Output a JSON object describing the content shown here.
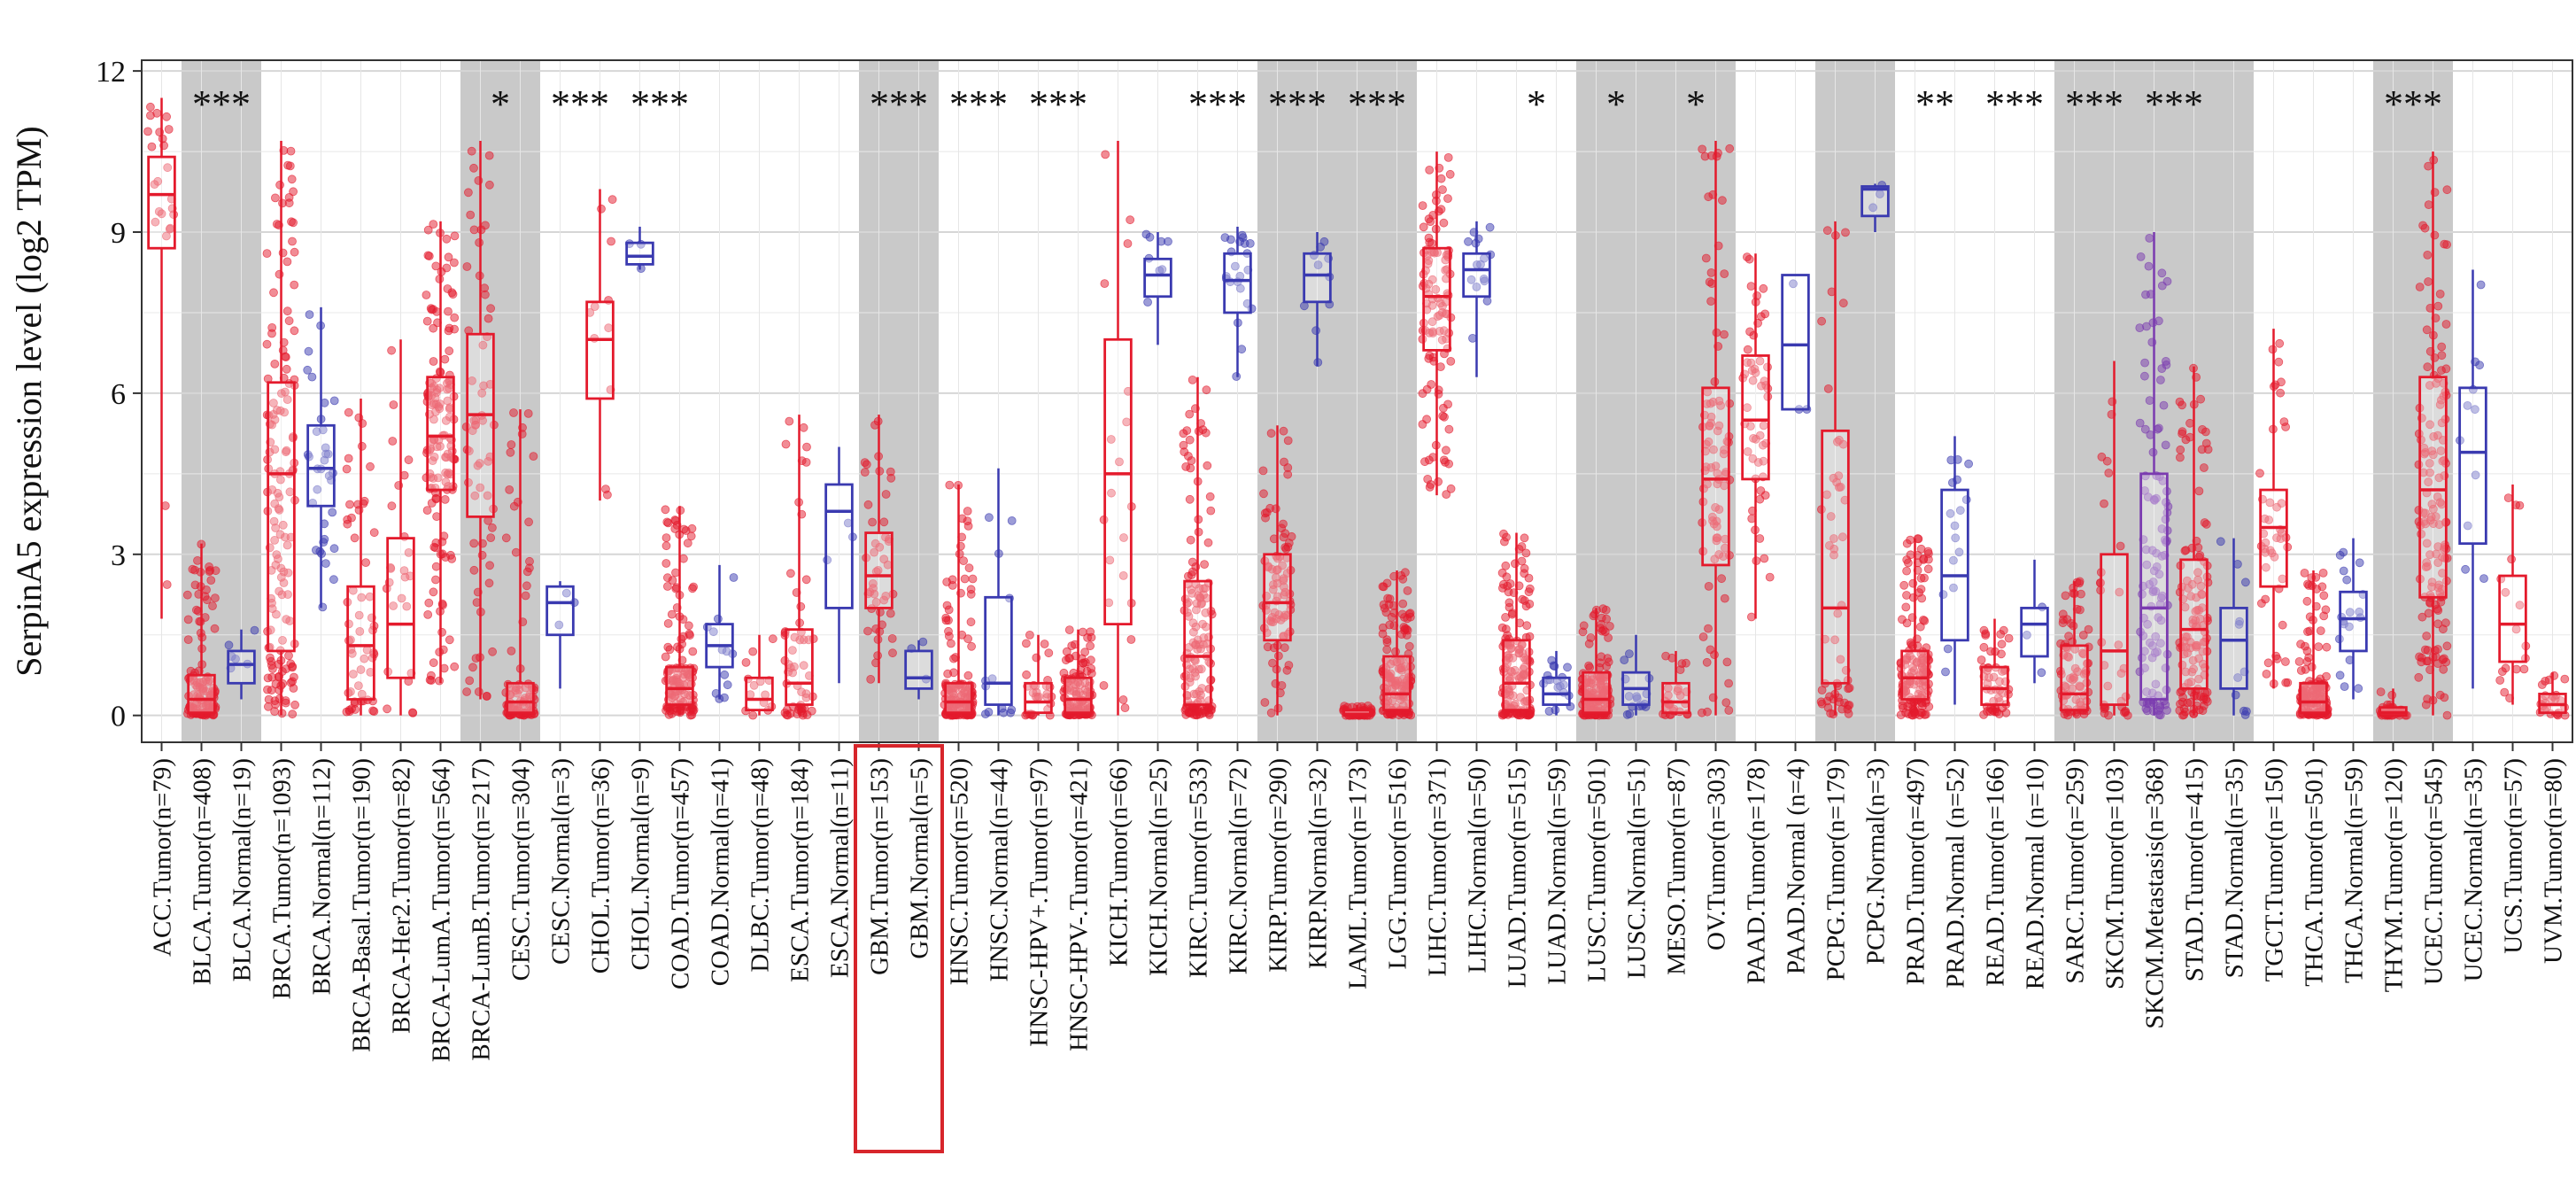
{
  "chart_data": {
    "type": "box",
    "ylabel": "SerpinA5 expression level (log2 TPM)",
    "ylim": [
      -0.5,
      12.2
    ],
    "yticks": [
      0,
      3,
      6,
      9,
      12
    ],
    "colors": {
      "tumor": "#e41a2c",
      "normal": "#3a3ab0",
      "metastasis": "#7b3bb0",
      "band": "#c9c9c9"
    },
    "highlight_indices": [
      18,
      19
    ],
    "significance": [
      {
        "label": "***",
        "indices": [
          1,
          2
        ]
      },
      {
        "label": "*",
        "indices": [
          8,
          9
        ]
      },
      {
        "label": "***",
        "indices": [
          10,
          11
        ]
      },
      {
        "label": "***",
        "indices": [
          12,
          13
        ]
      },
      {
        "label": "***",
        "indices": [
          18,
          19
        ]
      },
      {
        "label": "***",
        "indices": [
          20,
          21
        ]
      },
      {
        "label": "***",
        "indices": [
          22,
          23
        ]
      },
      {
        "label": "***",
        "indices": [
          26,
          27
        ]
      },
      {
        "label": "***",
        "indices": [
          28,
          29
        ]
      },
      {
        "label": "***",
        "indices": [
          30,
          31
        ]
      },
      {
        "label": "*",
        "indices": [
          34,
          35
        ]
      },
      {
        "label": "*",
        "indices": [
          36,
          37
        ]
      },
      {
        "label": "*",
        "indices": [
          38,
          39
        ]
      },
      {
        "label": "**",
        "indices": [
          44,
          45
        ]
      },
      {
        "label": "***",
        "indices": [
          46,
          47
        ]
      },
      {
        "label": "***",
        "indices": [
          48,
          49
        ]
      },
      {
        "label": "***",
        "indices": [
          50,
          51
        ]
      },
      {
        "label": "***",
        "indices": [
          56,
          57
        ]
      }
    ],
    "bands": [
      {
        "start": 1,
        "end": 2,
        "shade": true
      },
      {
        "start": 3,
        "end": 4,
        "shade": false
      },
      {
        "start": 5,
        "end": 7,
        "shade": false
      },
      {
        "start": 8,
        "end": 9,
        "shade": true
      },
      {
        "start": 10,
        "end": 11,
        "shade": false
      },
      {
        "start": 12,
        "end": 13,
        "shade": false
      },
      {
        "start": 14,
        "end": 14,
        "shade": false
      },
      {
        "start": 15,
        "end": 16,
        "shade": false
      },
      {
        "start": 18,
        "end": 19,
        "shade": true
      },
      {
        "start": 20,
        "end": 21,
        "shade": false
      },
      {
        "start": 22,
        "end": 23,
        "shade": false
      },
      {
        "start": 24,
        "end": 25,
        "shade": false
      },
      {
        "start": 26,
        "end": 27,
        "shade": false
      },
      {
        "start": 28,
        "end": 29,
        "shade": true
      },
      {
        "start": 30,
        "end": 31,
        "shade": true
      },
      {
        "start": 34,
        "end": 35,
        "shade": false
      },
      {
        "start": 36,
        "end": 37,
        "shade": true
      },
      {
        "start": 38,
        "end": 39,
        "shade": true
      },
      {
        "start": 42,
        "end": 43,
        "shade": true
      },
      {
        "start": 44,
        "end": 45,
        "shade": false
      },
      {
        "start": 46,
        "end": 47,
        "shade": false
      },
      {
        "start": 48,
        "end": 49,
        "shade": true
      },
      {
        "start": 50,
        "end": 52,
        "shade": true
      },
      {
        "start": 53,
        "end": 54,
        "shade": false
      },
      {
        "start": 56,
        "end": 57,
        "shade": true
      },
      {
        "start": 59,
        "end": 60,
        "shade": false
      }
    ],
    "categories": [
      {
        "label": "ACC.Tumor(n=79)",
        "type": "tumor",
        "q1": 8.7,
        "median": 9.7,
        "q3": 10.4,
        "wlo": 1.8,
        "whi": 11.5
      },
      {
        "label": "BLCA.Tumor(n=408)",
        "type": "tumor",
        "q1": 0.05,
        "median": 0.3,
        "q3": 0.75,
        "wlo": 0.0,
        "whi": 3.2
      },
      {
        "label": "BLCA.Normal(n=19)",
        "type": "normal",
        "q1": 0.6,
        "median": 0.95,
        "q3": 1.2,
        "wlo": 0.3,
        "whi": 1.6
      },
      {
        "label": "BRCA.Tumor(n=1093)",
        "type": "tumor",
        "q1": 1.2,
        "median": 4.5,
        "q3": 6.2,
        "wlo": 0.0,
        "whi": 10.7
      },
      {
        "label": "BRCA.Normal(n=112)",
        "type": "normal",
        "q1": 3.9,
        "median": 4.6,
        "q3": 5.4,
        "wlo": 2.0,
        "whi": 7.6
      },
      {
        "label": "BRCA-Basal.Tumor(n=190)",
        "type": "tumor",
        "q1": 0.3,
        "median": 1.3,
        "q3": 2.4,
        "wlo": 0.0,
        "whi": 5.9
      },
      {
        "label": "BRCA-Her2.Tumor(n=82)",
        "type": "tumor",
        "q1": 0.7,
        "median": 1.7,
        "q3": 3.3,
        "wlo": 0.0,
        "whi": 7.0
      },
      {
        "label": "BRCA-LumA.Tumor(n=564)",
        "type": "tumor",
        "q1": 4.2,
        "median": 5.2,
        "q3": 6.3,
        "wlo": 0.6,
        "whi": 9.2
      },
      {
        "label": "BRCA-LumB.Tumor(n=217)",
        "type": "tumor",
        "q1": 3.7,
        "median": 5.6,
        "q3": 7.1,
        "wlo": 0.3,
        "whi": 10.7
      },
      {
        "label": "CESC.Tumor(n=304)",
        "type": "tumor",
        "q1": 0.05,
        "median": 0.25,
        "q3": 0.6,
        "wlo": 0.0,
        "whi": 5.7
      },
      {
        "label": "CESC.Normal(n=3)",
        "type": "normal",
        "q1": 1.5,
        "median": 2.1,
        "q3": 2.4,
        "wlo": 0.5,
        "whi": 2.5
      },
      {
        "label": "CHOL.Tumor(n=36)",
        "type": "tumor",
        "q1": 5.9,
        "median": 7.0,
        "q3": 7.7,
        "wlo": 4.0,
        "whi": 9.8
      },
      {
        "label": "CHOL.Normal(n=9)",
        "type": "normal",
        "q1": 8.4,
        "median": 8.55,
        "q3": 8.8,
        "wlo": 8.3,
        "whi": 9.1
      },
      {
        "label": "COAD.Tumor(n=457)",
        "type": "tumor",
        "q1": 0.2,
        "median": 0.5,
        "q3": 0.9,
        "wlo": 0.0,
        "whi": 3.9
      },
      {
        "label": "COAD.Normal(n=41)",
        "type": "normal",
        "q1": 0.9,
        "median": 1.3,
        "q3": 1.7,
        "wlo": 0.3,
        "whi": 2.8
      },
      {
        "label": "DLBC.Tumor(n=48)",
        "type": "tumor",
        "q1": 0.1,
        "median": 0.3,
        "q3": 0.7,
        "wlo": 0.0,
        "whi": 1.5
      },
      {
        "label": "ESCA.Tumor(n=184)",
        "type": "tumor",
        "q1": 0.2,
        "median": 0.6,
        "q3": 1.6,
        "wlo": 0.0,
        "whi": 5.6
      },
      {
        "label": "ESCA.Normal(n=11)",
        "type": "normal",
        "q1": 2.0,
        "median": 3.8,
        "q3": 4.3,
        "wlo": 0.6,
        "whi": 5.0
      },
      {
        "label": "GBM.Tumor(n=153)",
        "type": "tumor",
        "q1": 2.0,
        "median": 2.6,
        "q3": 3.4,
        "wlo": 0.6,
        "whi": 5.6
      },
      {
        "label": "GBM.Normal(n=5)",
        "type": "normal",
        "q1": 0.5,
        "median": 0.7,
        "q3": 1.2,
        "wlo": 0.3,
        "whi": 1.4
      },
      {
        "label": "HNSC.Tumor(n=520)",
        "type": "tumor",
        "q1": 0.05,
        "median": 0.25,
        "q3": 0.6,
        "wlo": 0.0,
        "whi": 4.3
      },
      {
        "label": "HNSC.Normal(n=44)",
        "type": "normal",
        "q1": 0.2,
        "median": 0.6,
        "q3": 2.2,
        "wlo": 0.0,
        "whi": 4.6
      },
      {
        "label": "HNSC-HPV+.Tumor(n=97)",
        "type": "tumor",
        "q1": 0.05,
        "median": 0.25,
        "q3": 0.6,
        "wlo": 0.0,
        "whi": 1.5
      },
      {
        "label": "HNSC-HPV-.Tumor(n=421)",
        "type": "tumor",
        "q1": 0.05,
        "median": 0.3,
        "q3": 0.7,
        "wlo": 0.0,
        "whi": 1.6
      },
      {
        "label": "KICH.Tumor(n=66)",
        "type": "tumor",
        "q1": 1.7,
        "median": 4.5,
        "q3": 7.0,
        "wlo": 0.0,
        "whi": 10.7
      },
      {
        "label": "KICH.Normal(n=25)",
        "type": "normal",
        "q1": 7.8,
        "median": 8.2,
        "q3": 8.5,
        "wlo": 6.9,
        "whi": 9.0
      },
      {
        "label": "KIRC.Tumor(n=533)",
        "type": "tumor",
        "q1": 0.2,
        "median": 1.1,
        "q3": 2.5,
        "wlo": 0.0,
        "whi": 6.3
      },
      {
        "label": "KIRC.Normal(n=72)",
        "type": "normal",
        "q1": 7.5,
        "median": 8.1,
        "q3": 8.6,
        "wlo": 6.3,
        "whi": 9.1
      },
      {
        "label": "KIRP.Tumor(n=290)",
        "type": "tumor",
        "q1": 1.4,
        "median": 2.1,
        "q3": 3.0,
        "wlo": 0.0,
        "whi": 5.4
      },
      {
        "label": "KIRP.Normal(n=32)",
        "type": "normal",
        "q1": 7.7,
        "median": 8.2,
        "q3": 8.6,
        "wlo": 6.5,
        "whi": 9.0
      },
      {
        "label": "LAML.Tumor(n=173)",
        "type": "tumor",
        "q1": 0.0,
        "median": 0.02,
        "q3": 0.1,
        "wlo": 0.0,
        "whi": 0.2
      },
      {
        "label": "LGG.Tumor(n=516)",
        "type": "tumor",
        "q1": 0.1,
        "median": 0.4,
        "q3": 1.1,
        "wlo": 0.0,
        "whi": 2.7
      },
      {
        "label": "LIHC.Tumor(n=371)",
        "type": "tumor",
        "q1": 6.8,
        "median": 7.8,
        "q3": 8.7,
        "wlo": 4.1,
        "whi": 10.5
      },
      {
        "label": "LIHC.Normal(n=50)",
        "type": "normal",
        "q1": 7.8,
        "median": 8.3,
        "q3": 8.6,
        "wlo": 6.3,
        "whi": 9.2
      },
      {
        "label": "LUAD.Tumor(n=515)",
        "type": "tumor",
        "q1": 0.1,
        "median": 0.6,
        "q3": 1.4,
        "wlo": 0.0,
        "whi": 3.4
      },
      {
        "label": "LUAD.Normal(n=59)",
        "type": "normal",
        "q1": 0.2,
        "median": 0.4,
        "q3": 0.7,
        "wlo": 0.0,
        "whi": 1.2
      },
      {
        "label": "LUSC.Tumor(n=501)",
        "type": "tumor",
        "q1": 0.05,
        "median": 0.3,
        "q3": 0.8,
        "wlo": 0.0,
        "whi": 2.0
      },
      {
        "label": "LUSC.Normal(n=51)",
        "type": "normal",
        "q1": 0.2,
        "median": 0.5,
        "q3": 0.8,
        "wlo": 0.0,
        "whi": 1.5
      },
      {
        "label": "MESO.Tumor(n=87)",
        "type": "tumor",
        "q1": 0.05,
        "median": 0.25,
        "q3": 0.6,
        "wlo": 0.0,
        "whi": 1.2
      },
      {
        "label": "OV.Tumor(n=303)",
        "type": "tumor",
        "q1": 2.8,
        "median": 4.4,
        "q3": 6.1,
        "wlo": 0.0,
        "whi": 10.7
      },
      {
        "label": "PAAD.Tumor(n=178)",
        "type": "tumor",
        "q1": 4.4,
        "median": 5.5,
        "q3": 6.7,
        "wlo": 1.8,
        "whi": 8.6
      },
      {
        "label": "PAAD.Normal (n=4)",
        "type": "normal",
        "q1": 5.7,
        "median": 6.9,
        "q3": 8.2,
        "wlo": 5.7,
        "whi": 8.2
      },
      {
        "label": "PCPG.Tumor(n=179)",
        "type": "tumor",
        "q1": 0.6,
        "median": 2.0,
        "q3": 5.3,
        "wlo": 0.0,
        "whi": 9.2
      },
      {
        "label": "PCPG.Normal(n=3)",
        "type": "normal",
        "q1": 9.3,
        "median": 9.8,
        "q3": 9.85,
        "wlo": 9.0,
        "whi": 9.9
      },
      {
        "label": "PRAD.Tumor(n=497)",
        "type": "tumor",
        "q1": 0.3,
        "median": 0.7,
        "q3": 1.2,
        "wlo": 0.0,
        "whi": 3.3
      },
      {
        "label": "PRAD.Normal (n=52)",
        "type": "normal",
        "q1": 1.4,
        "median": 2.6,
        "q3": 4.2,
        "wlo": 0.2,
        "whi": 5.2
      },
      {
        "label": "READ.Tumor(n=166)",
        "type": "tumor",
        "q1": 0.2,
        "median": 0.5,
        "q3": 0.9,
        "wlo": 0.0,
        "whi": 1.8
      },
      {
        "label": "READ.Normal (n=10)",
        "type": "normal",
        "q1": 1.1,
        "median": 1.7,
        "q3": 2.0,
        "wlo": 0.6,
        "whi": 2.9
      },
      {
        "label": "SARC.Tumor(n=259)",
        "type": "tumor",
        "q1": 0.1,
        "median": 0.4,
        "q3": 1.3,
        "wlo": 0.0,
        "whi": 2.5
      },
      {
        "label": "SKCM.Tumor(n=103)",
        "type": "tumor",
        "q1": 0.2,
        "median": 1.2,
        "q3": 3.0,
        "wlo": 0.0,
        "whi": 6.6
      },
      {
        "label": "SKCM.Metastasis(n=368)",
        "type": "metastasis",
        "q1": 0.3,
        "median": 2.0,
        "q3": 4.5,
        "wlo": 0.0,
        "whi": 9.0
      },
      {
        "label": "STAD.Tumor(n=415)",
        "type": "tumor",
        "q1": 0.5,
        "median": 1.6,
        "q3": 2.9,
        "wlo": 0.0,
        "whi": 6.5
      },
      {
        "label": "STAD.Normal(n=35)",
        "type": "normal",
        "q1": 0.5,
        "median": 1.4,
        "q3": 2.0,
        "wlo": 0.0,
        "whi": 3.3
      },
      {
        "label": "TGCT.Tumor(n=150)",
        "type": "tumor",
        "q1": 2.4,
        "median": 3.5,
        "q3": 4.2,
        "wlo": 0.5,
        "whi": 7.2
      },
      {
        "label": "THCA.Tumor(n=501)",
        "type": "tumor",
        "q1": 0.05,
        "median": 0.25,
        "q3": 0.6,
        "wlo": 0.0,
        "whi": 2.7
      },
      {
        "label": "THCA.Normal(n=59)",
        "type": "normal",
        "q1": 1.2,
        "median": 1.8,
        "q3": 2.3,
        "wlo": 0.3,
        "whi": 3.3
      },
      {
        "label": "THYM.Tumor(n=120)",
        "type": "tumor",
        "q1": 0.0,
        "median": 0.05,
        "q3": 0.15,
        "wlo": 0.0,
        "whi": 0.5
      },
      {
        "label": "UCEC.Tumor(n=545)",
        "type": "tumor",
        "q1": 2.2,
        "median": 4.2,
        "q3": 6.3,
        "wlo": 0.0,
        "whi": 10.5
      },
      {
        "label": "UCEC.Normal(n=35)",
        "type": "normal",
        "q1": 3.2,
        "median": 4.9,
        "q3": 6.1,
        "wlo": 0.5,
        "whi": 8.3
      },
      {
        "label": "UCS.Tumor(n=57)",
        "type": "tumor",
        "q1": 1.0,
        "median": 1.7,
        "q3": 2.6,
        "wlo": 0.2,
        "whi": 4.3
      },
      {
        "label": "UVM.Tumor(n=80)",
        "type": "tumor",
        "q1": 0.05,
        "median": 0.2,
        "q3": 0.4,
        "wlo": 0.0,
        "whi": 0.8
      }
    ]
  }
}
